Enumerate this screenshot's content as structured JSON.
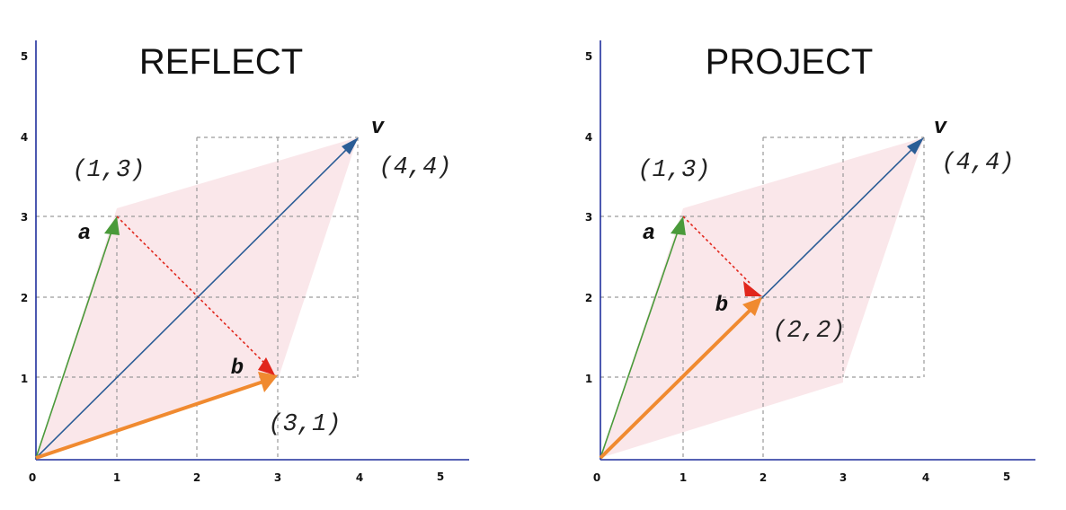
{
  "colors": {
    "axis": "#1f2f9c",
    "grid": "#9a9a9a",
    "v": "#2b5d96",
    "a": "#4a9a3a",
    "b": "#f08a30",
    "b_head": "#e1261c",
    "dotted": "#e1261c",
    "fill": "#f9e3e6"
  },
  "panels": [
    {
      "title": "REFLECT",
      "ticks_x": [
        "0",
        "1",
        "2",
        "3",
        "4",
        "5"
      ],
      "ticks_y": [
        "1",
        "2",
        "3",
        "4",
        "5"
      ],
      "vectors": {
        "v": {
          "x": 4,
          "y": 4,
          "label": "v",
          "coord": "(4,4)"
        },
        "a": {
          "x": 1,
          "y": 3,
          "label": "a",
          "coord": "(1,3)"
        },
        "b": {
          "x": 3,
          "y": 1,
          "label": "b",
          "coord": "(3,1)"
        }
      }
    },
    {
      "title": "PROJECT",
      "ticks_x": [
        "0",
        "1",
        "2",
        "3",
        "4",
        "5"
      ],
      "ticks_y": [
        "1",
        "2",
        "3",
        "4",
        "5"
      ],
      "vectors": {
        "v": {
          "x": 4,
          "y": 4,
          "label": "v",
          "coord": "(4,4)"
        },
        "a": {
          "x": 1,
          "y": 3,
          "label": "a",
          "coord": "(1,3)"
        },
        "b": {
          "x": 2,
          "y": 2,
          "label": "b",
          "coord": "(2,2)"
        }
      }
    }
  ]
}
